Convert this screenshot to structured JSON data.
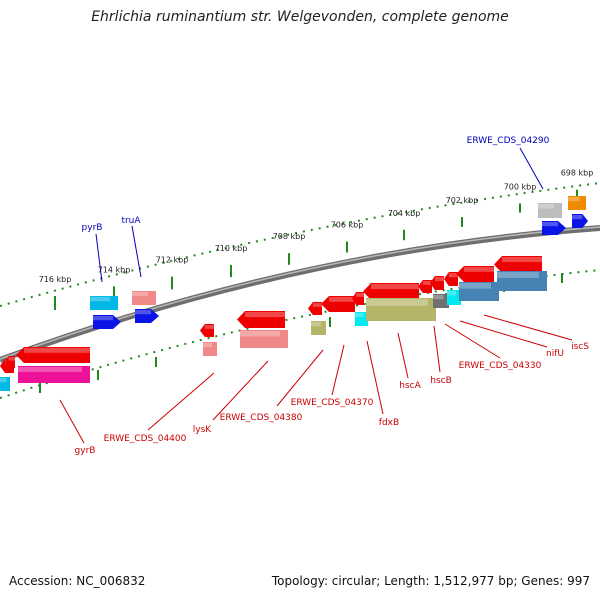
{
  "title": "Ehrlichia ruminantium str. Welgevonden, complete genome",
  "footer": {
    "accession": "Accession: NC_006832",
    "summary": "Topology: circular; Length: 1,512,977 bp; Genes: 997"
  },
  "colors": {
    "backbone": "#7a7a7a",
    "tick_dots": "#1f8a1f",
    "label_blue": "#0000bb",
    "label_red": "#cc0000",
    "gene_red": "#ee0000",
    "gene_blue": "#0a14e6",
    "gene_cyan": "#00b8e6",
    "gene_steel": "#4682b4",
    "gene_olive": "#b5b56a",
    "gene_gray": "#707070",
    "gene_pink": "#ee1199",
    "gene_salmon": "#f08888",
    "gene_orange": "#f08a00"
  },
  "axis": {
    "ticks": [
      "716 kbp",
      "714 kbp",
      "712 kbp",
      "710 kbp",
      "708 kbp",
      "706 kbp",
      "704 kbp",
      "702 kbp",
      "700 kbp",
      "698 kbp"
    ]
  },
  "gene_labels": {
    "blue": [
      "ERWE_CDS_04290",
      "pyrB",
      "truA"
    ],
    "red": [
      "iscS",
      "nifU",
      "ERWE_CDS_04330",
      "hscB",
      "hscA",
      "fdxB",
      "ERWE_CDS_04370",
      "ERWE_CDS_04380",
      "lysK",
      "ERWE_CDS_04400",
      "gyrB"
    ]
  }
}
